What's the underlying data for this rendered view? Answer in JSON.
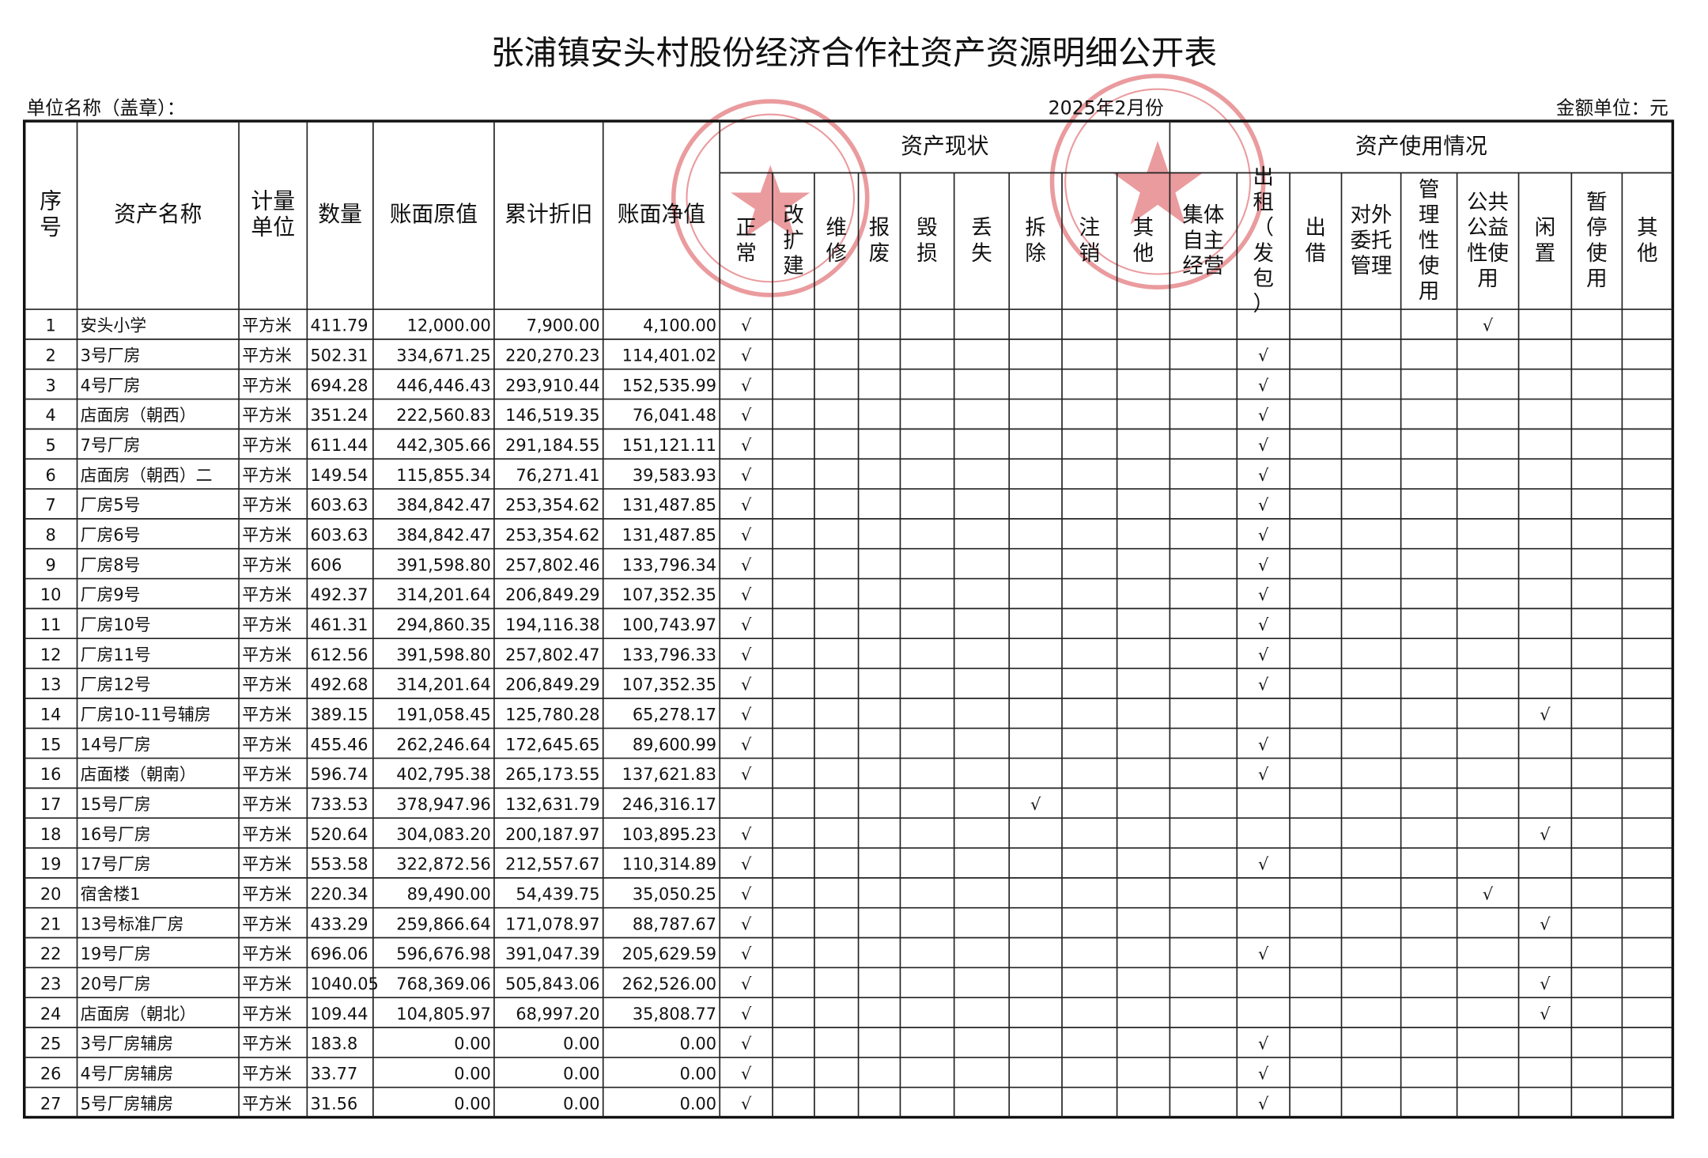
{
  "header": {
    "title": "张浦镇安头村股份经济合作社资产资源明细公开表",
    "unit_name": "单位名称（盖章）：",
    "date": "2025年2月份",
    "currency": "金额单位：元"
  },
  "table": {
    "groups": [
      "资产现状",
      "资产使用情况"
    ],
    "columns": [
      "序号",
      "资产名称",
      "计量单位",
      "数量",
      "账面原值",
      "累计折旧",
      "账面净值",
      "正常",
      "改扩建",
      "维修",
      "报废",
      "毁损",
      "丢失",
      "拆除",
      "注销",
      "其他",
      "集体自主经营",
      "出租（发包）",
      "出借",
      "对外委托管理",
      "管理性使用",
      "公共公益性使用",
      "闲置",
      "暂停使用",
      "其他"
    ],
    "rows": [
      [
        "1",
        "安头小学",
        "平方米",
        "411.79",
        "12,000.00",
        "7,900.00",
        "4,100.00",
        "√",
        null,
        null,
        null,
        null,
        null,
        null,
        null,
        null,
        null,
        null,
        null,
        null,
        null,
        "√",
        null,
        null,
        null
      ],
      [
        "2",
        "3号厂房",
        "平方米",
        "502.31",
        "334,671.25",
        "220,270.23",
        "114,401.02",
        "√",
        null,
        null,
        null,
        null,
        null,
        null,
        null,
        null,
        null,
        "√",
        null,
        null,
        null,
        null,
        null,
        null,
        null
      ],
      [
        "3",
        "4号厂房",
        "平方米",
        "694.28",
        "446,446.43",
        "293,910.44",
        "152,535.99",
        "√",
        null,
        null,
        null,
        null,
        null,
        null,
        null,
        null,
        null,
        "√",
        null,
        null,
        null,
        null,
        null,
        null,
        null
      ],
      [
        "4",
        "店面房（朝西）",
        "平方米",
        "351.24",
        "222,560.83",
        "146,519.35",
        "76,041.48",
        "√",
        null,
        null,
        null,
        null,
        null,
        null,
        null,
        null,
        null,
        "√",
        null,
        null,
        null,
        null,
        null,
        null,
        null
      ],
      [
        "5",
        "7号厂房",
        "平方米",
        "611.44",
        "442,305.66",
        "291,184.55",
        "151,121.11",
        "√",
        null,
        null,
        null,
        null,
        null,
        null,
        null,
        null,
        null,
        "√",
        null,
        null,
        null,
        null,
        null,
        null,
        null
      ],
      [
        "6",
        "店面房（朝西）二",
        "平方米",
        "149.54",
        "115,855.34",
        "76,271.41",
        "39,583.93",
        "√",
        null,
        null,
        null,
        null,
        null,
        null,
        null,
        null,
        null,
        "√",
        null,
        null,
        null,
        null,
        null,
        null,
        null
      ],
      [
        "7",
        "厂房5号",
        "平方米",
        "603.63",
        "384,842.47",
        "253,354.62",
        "131,487.85",
        "√",
        null,
        null,
        null,
        null,
        null,
        null,
        null,
        null,
        null,
        "√",
        null,
        null,
        null,
        null,
        null,
        null,
        null
      ],
      [
        "8",
        "厂房6号",
        "平方米",
        "603.63",
        "384,842.47",
        "253,354.62",
        "131,487.85",
        "√",
        null,
        null,
        null,
        null,
        null,
        null,
        null,
        null,
        null,
        "√",
        null,
        null,
        null,
        null,
        null,
        null,
        null
      ],
      [
        "9",
        "厂房8号",
        "平方米",
        "606",
        "391,598.80",
        "257,802.46",
        "133,796.34",
        "√",
        null,
        null,
        null,
        null,
        null,
        null,
        null,
        null,
        null,
        "√",
        null,
        null,
        null,
        null,
        null,
        null,
        null
      ],
      [
        "10",
        "厂房9号",
        "平方米",
        "492.37",
        "314,201.64",
        "206,849.29",
        "107,352.35",
        "√",
        null,
        null,
        null,
        null,
        null,
        null,
        null,
        null,
        null,
        "√",
        null,
        null,
        null,
        null,
        null,
        null,
        null
      ],
      [
        "11",
        "厂房10号",
        "平方米",
        "461.31",
        "294,860.35",
        "194,116.38",
        "100,743.97",
        "√",
        null,
        null,
        null,
        null,
        null,
        null,
        null,
        null,
        null,
        "√",
        null,
        null,
        null,
        null,
        null,
        null,
        null
      ],
      [
        "12",
        "厂房11号",
        "平方米",
        "612.56",
        "391,598.80",
        "257,802.47",
        "133,796.33",
        "√",
        null,
        null,
        null,
        null,
        null,
        null,
        null,
        null,
        null,
        "√",
        null,
        null,
        null,
        null,
        null,
        null,
        null
      ],
      [
        "13",
        "厂房12号",
        "平方米",
        "492.68",
        "314,201.64",
        "206,849.29",
        "107,352.35",
        "√",
        null,
        null,
        null,
        null,
        null,
        null,
        null,
        null,
        null,
        "√",
        null,
        null,
        null,
        null,
        null,
        null,
        null
      ],
      [
        "14",
        "厂房10-11号辅房",
        "平方米",
        "389.15",
        "191,058.45",
        "125,780.28",
        "65,278.17",
        "√",
        null,
        null,
        null,
        null,
        null,
        null,
        null,
        null,
        null,
        null,
        null,
        null,
        null,
        null,
        "√",
        null,
        null
      ],
      [
        "15",
        "14号厂房",
        "平方米",
        "455.46",
        "262,246.64",
        "172,645.65",
        "89,600.99",
        "√",
        null,
        null,
        null,
        null,
        null,
        null,
        null,
        null,
        null,
        "√",
        null,
        null,
        null,
        null,
        null,
        null,
        null
      ],
      [
        "16",
        "店面楼（朝南）",
        "平方米",
        "596.74",
        "402,795.38",
        "265,173.55",
        "137,621.83",
        "√",
        null,
        null,
        null,
        null,
        null,
        null,
        null,
        null,
        null,
        "√",
        null,
        null,
        null,
        null,
        null,
        null,
        null
      ],
      [
        "17",
        "15号厂房",
        "平方米",
        "733.53",
        "378,947.96",
        "132,631.79",
        "246,316.17",
        null,
        null,
        null,
        null,
        null,
        null,
        "√",
        null,
        null,
        null,
        null,
        null,
        null,
        null,
        null,
        null,
        null,
        null,
        null
      ],
      [
        "18",
        "16号厂房",
        "平方米",
        "520.64",
        "304,083.20",
        "200,187.97",
        "103,895.23",
        "√",
        null,
        null,
        null,
        null,
        null,
        null,
        null,
        null,
        null,
        null,
        null,
        null,
        null,
        null,
        "√",
        null,
        null
      ],
      [
        "19",
        "17号厂房",
        "平方米",
        "553.58",
        "322,872.56",
        "212,557.67",
        "110,314.89",
        "√",
        null,
        null,
        null,
        null,
        null,
        null,
        null,
        null,
        null,
        "√",
        null,
        null,
        null,
        null,
        null,
        null,
        null
      ],
      [
        "20",
        "宿舍楼1",
        "平方米",
        "220.34",
        "89,490.00",
        "54,439.75",
        "35,050.25",
        "√",
        null,
        null,
        null,
        null,
        null,
        null,
        null,
        null,
        null,
        null,
        null,
        null,
        null,
        "√",
        null,
        null,
        null
      ],
      [
        "21",
        "13号标准厂房",
        "平方米",
        "433.29",
        "259,866.64",
        "171,078.97",
        "88,787.67",
        "√",
        null,
        null,
        null,
        null,
        null,
        null,
        null,
        null,
        null,
        null,
        null,
        null,
        null,
        null,
        "√",
        null,
        null
      ],
      [
        "22",
        "19号厂房",
        "平方米",
        "696.06",
        "596,676.98",
        "391,047.39",
        "205,629.59",
        "√",
        null,
        null,
        null,
        null,
        null,
        null,
        null,
        null,
        null,
        "√",
        null,
        null,
        null,
        null,
        null,
        null,
        null
      ],
      [
        "23",
        "20号厂房",
        "平方米",
        "1040.05",
        "768,369.06",
        "505,843.06",
        "262,526.00",
        "√",
        null,
        null,
        null,
        null,
        null,
        null,
        null,
        null,
        null,
        null,
        null,
        null,
        null,
        null,
        "√",
        null,
        null
      ],
      [
        "24",
        "店面房（朝北）",
        "平方米",
        "109.44",
        "104,805.97",
        "68,997.20",
        "35,808.77",
        "√",
        null,
        null,
        null,
        null,
        null,
        null,
        null,
        null,
        null,
        null,
        null,
        null,
        null,
        null,
        "√",
        null,
        null
      ],
      [
        "25",
        "3号厂房辅房",
        "平方米",
        "183.8",
        "0.00",
        "0.00",
        "0.00",
        "√",
        null,
        null,
        null,
        null,
        null,
        null,
        null,
        null,
        null,
        "√",
        null,
        null,
        null,
        null,
        null,
        null,
        null
      ],
      [
        "26",
        "4号厂房辅房",
        "平方米",
        "33.77",
        "0.00",
        "0.00",
        "0.00",
        "√",
        null,
        null,
        null,
        null,
        null,
        null,
        null,
        null,
        null,
        "√",
        null,
        null,
        null,
        null,
        null,
        null,
        null
      ],
      [
        "27",
        "5号厂房辅房",
        "平方米",
        "31.56",
        "0.00",
        "0.00",
        "0.00",
        "√",
        null,
        null,
        null,
        null,
        null,
        null,
        null,
        null,
        null,
        "√",
        null,
        null,
        null,
        null,
        null,
        null,
        null
      ]
    ]
  }
}
